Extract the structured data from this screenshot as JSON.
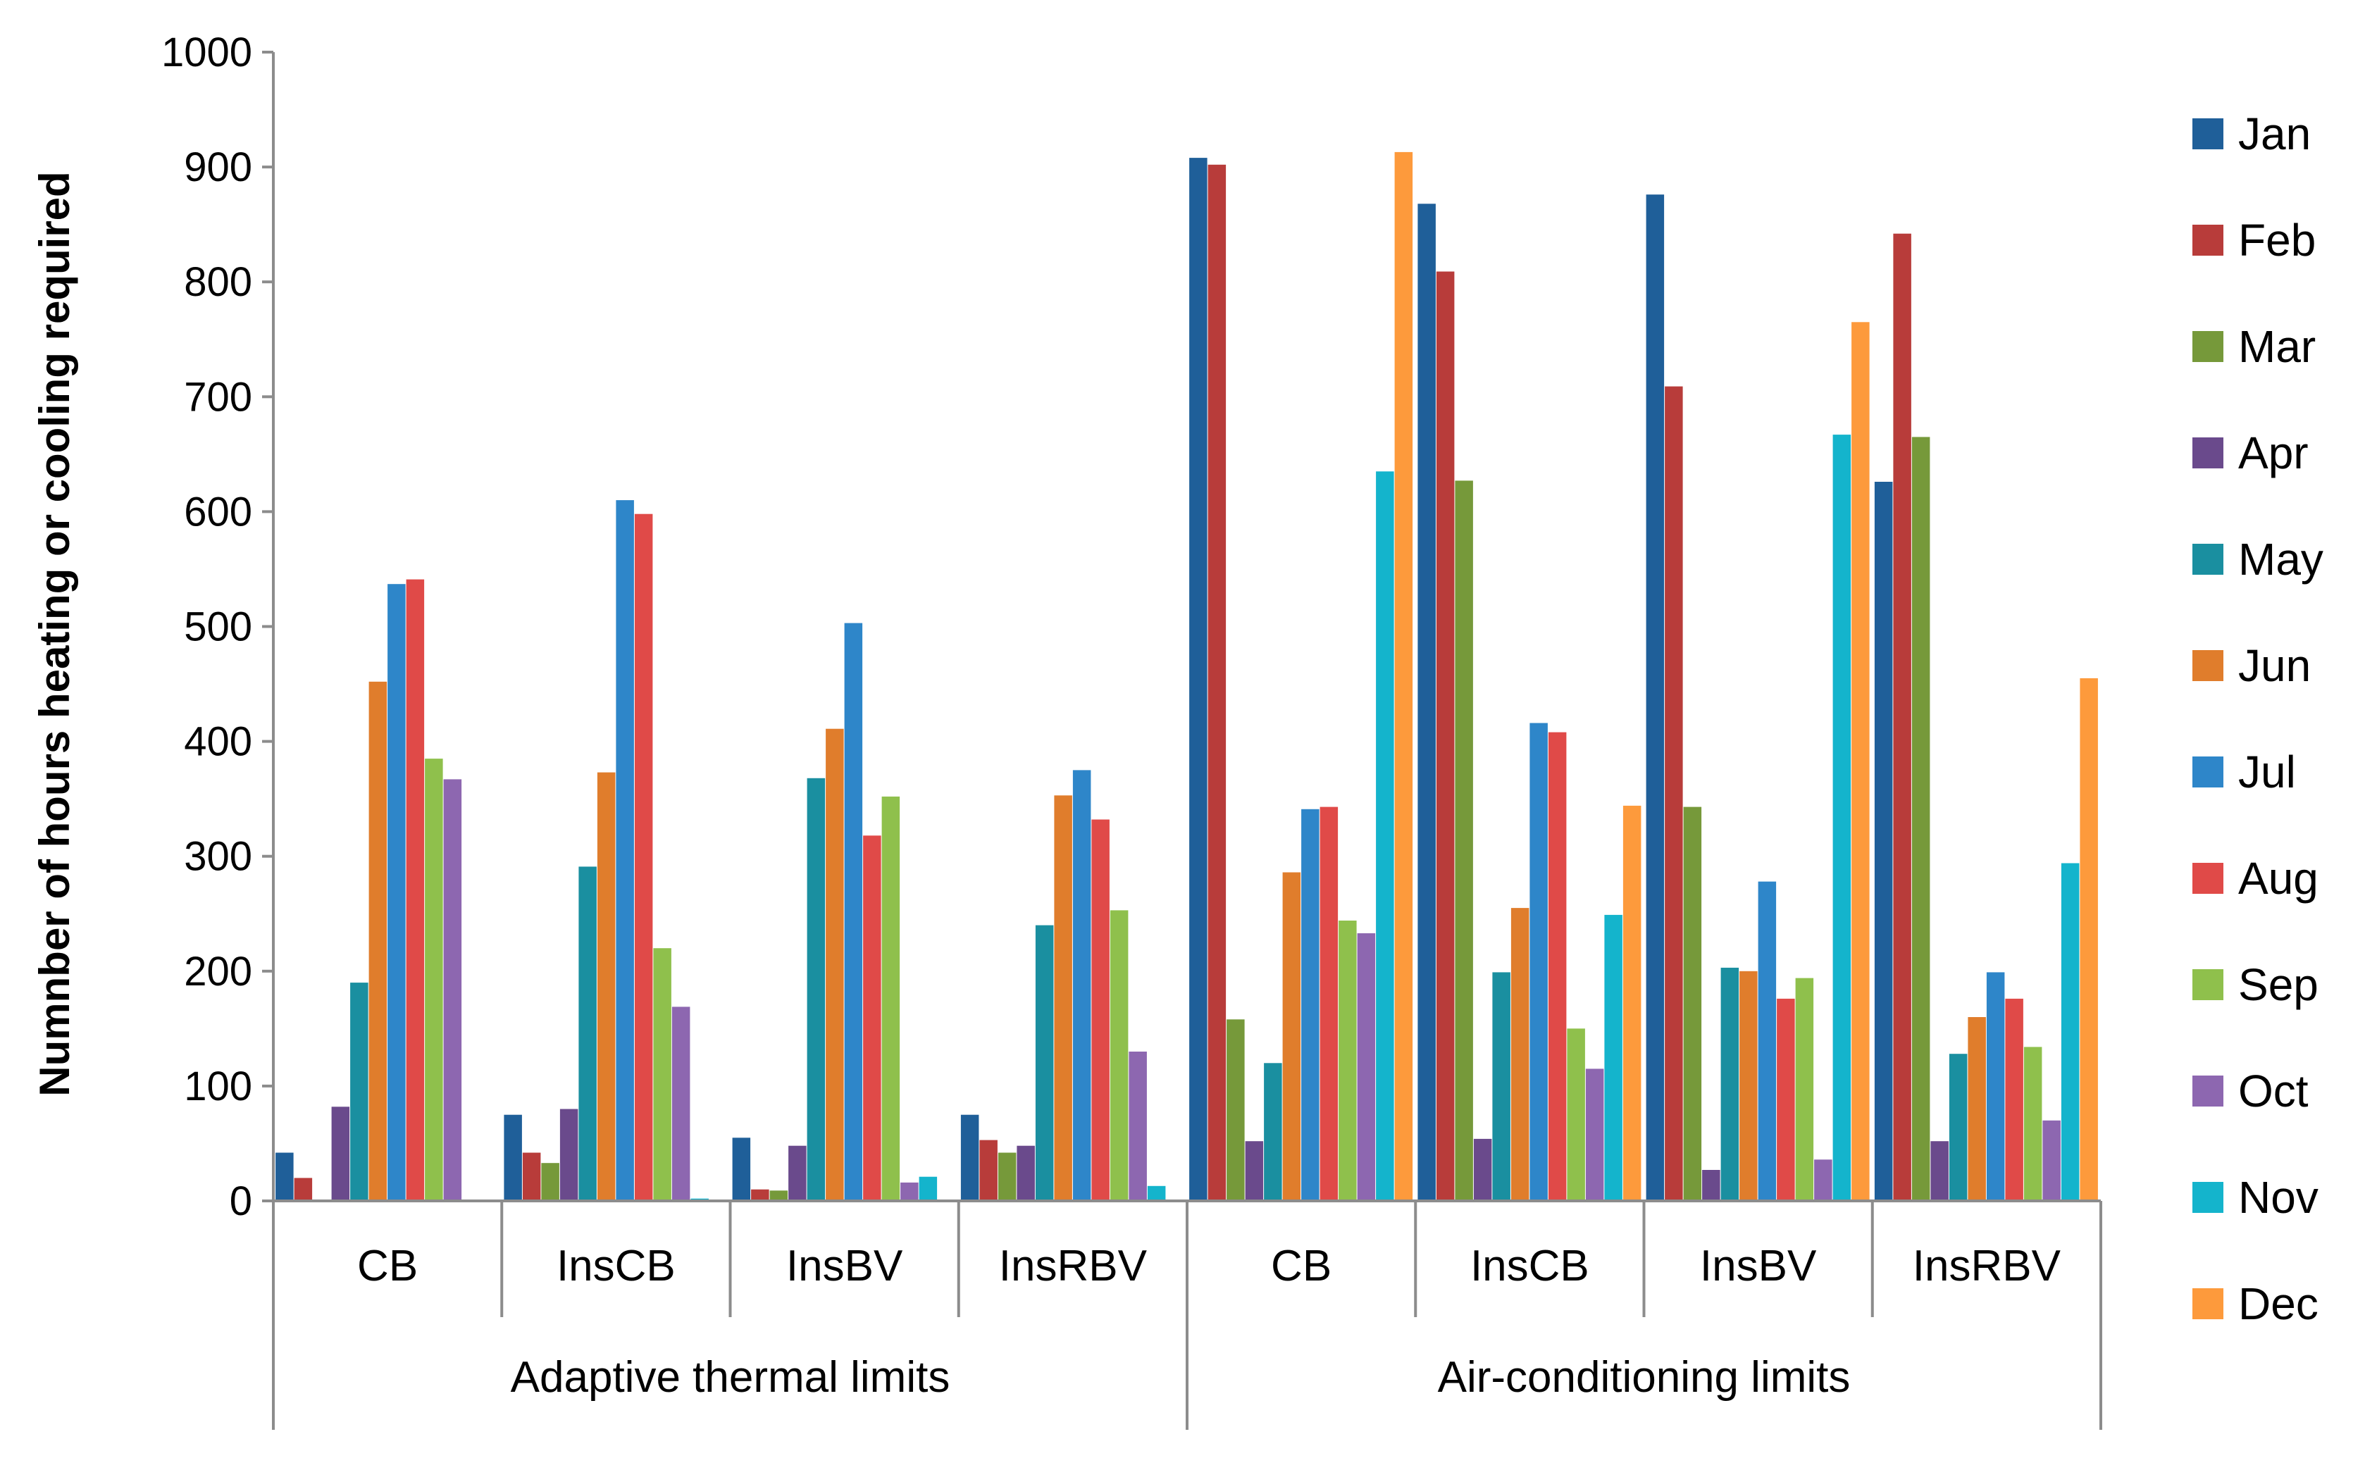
{
  "chart_data": {
    "type": "bar",
    "title": "",
    "ylabel": "Numnber of hours heating or cooling required",
    "xlabel": "",
    "ylim": [
      0,
      1000
    ],
    "yticks": [
      0,
      100,
      200,
      300,
      400,
      500,
      600,
      700,
      800,
      900,
      1000
    ],
    "grid": false,
    "legend_position": "right",
    "groups": [
      {
        "label": "Adaptive thermal limits",
        "categories": [
          "CB",
          "InsCB",
          "InsBV",
          "InsRBV"
        ]
      },
      {
        "label": "Air-conditioning limits",
        "categories": [
          "CB",
          "InsCB",
          "InsBV",
          "InsRBV"
        ]
      }
    ],
    "categories": [
      "CB",
      "InsCB",
      "InsBV",
      "InsRBV",
      "CB",
      "InsCB",
      "InsBV",
      "InsRBV"
    ],
    "series": [
      {
        "name": "Jan",
        "color": "#1f5f99",
        "values": [
          42,
          75,
          55,
          75,
          908,
          868,
          876,
          626
        ]
      },
      {
        "name": "Feb",
        "color": "#b83c3a",
        "values": [
          20,
          42,
          10,
          53,
          902,
          809,
          709,
          842
        ]
      },
      {
        "name": "Mar",
        "color": "#76993a",
        "values": [
          0,
          33,
          9,
          42,
          158,
          627,
          343,
          665
        ]
      },
      {
        "name": "Apr",
        "color": "#6a4a8c",
        "values": [
          82,
          80,
          48,
          48,
          52,
          54,
          27,
          52
        ]
      },
      {
        "name": "May",
        "color": "#1a8fa0",
        "values": [
          190,
          291,
          368,
          240,
          120,
          199,
          203,
          128
        ]
      },
      {
        "name": "Jun",
        "color": "#e07d2c",
        "values": [
          452,
          373,
          411,
          353,
          286,
          255,
          200,
          160
        ]
      },
      {
        "name": "Jul",
        "color": "#2e86c9",
        "values": [
          537,
          610,
          503,
          375,
          341,
          416,
          278,
          199
        ]
      },
      {
        "name": "Aug",
        "color": "#e04a48",
        "values": [
          541,
          598,
          318,
          332,
          343,
          408,
          176,
          176
        ]
      },
      {
        "name": "Sep",
        "color": "#8fc04c",
        "values": [
          385,
          220,
          352,
          253,
          244,
          150,
          194,
          134
        ]
      },
      {
        "name": "Oct",
        "color": "#8d67b0",
        "values": [
          367,
          169,
          16,
          130,
          233,
          115,
          36,
          70
        ]
      },
      {
        "name": "Nov",
        "color": "#14b4cc",
        "values": [
          0,
          2,
          21,
          13,
          635,
          249,
          667,
          294
        ]
      },
      {
        "name": "Dec",
        "color": "#fd9a3c",
        "values": [
          0,
          0,
          0,
          0,
          913,
          344,
          765,
          455
        ]
      }
    ]
  }
}
